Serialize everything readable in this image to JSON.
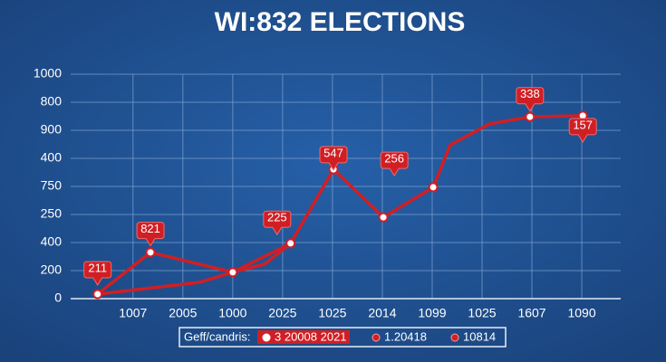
{
  "chart_data": {
    "type": "line",
    "title": "WI:832 ELECTIONS",
    "categories": [
      "1007",
      "2005",
      "1000",
      "2025",
      "1025",
      "2014",
      "1099",
      "1025",
      "1607",
      "1090"
    ],
    "xlim": [
      -1.25,
      9.78
    ],
    "ylim": [
      0,
      8
    ],
    "yticks": [
      {
        "value": 0,
        "label": "0"
      },
      {
        "value": 1,
        "label": "200"
      },
      {
        "value": 2,
        "label": "400"
      },
      {
        "value": 3,
        "label": "250"
      },
      {
        "value": 4,
        "label": "750"
      },
      {
        "value": 5,
        "label": "400"
      },
      {
        "value": 6,
        "label": "900"
      },
      {
        "value": 7,
        "label": "800"
      },
      {
        "value": 8,
        "label": "1000"
      }
    ],
    "grid": true,
    "series": [
      {
        "color": "#d01f24",
        "markers": true,
        "x": [
          -0.71,
          0.35,
          2.0,
          3.16,
          4.02,
          5.02,
          6.02,
          6.36,
          7.15,
          7.96,
          9.02
        ],
        "values": [
          0.16,
          1.65,
          0.94,
          1.97,
          4.61,
          2.9,
          3.97,
          5.48,
          6.23,
          6.48,
          6.52
        ],
        "marked": [
          true,
          true,
          true,
          true,
          true,
          true,
          true,
          false,
          false,
          true,
          true
        ]
      },
      {
        "color": "#d01f24",
        "markers": false,
        "x": [
          -0.71,
          1.33,
          2.0,
          2.64,
          3.16
        ],
        "values": [
          0.16,
          0.58,
          0.94,
          1.23,
          1.97
        ]
      }
    ],
    "annotations": [
      {
        "text": "211",
        "x": -0.71,
        "y": 1.0
      },
      {
        "text": "821",
        "x": 0.35,
        "y": 2.4
      },
      {
        "text": "225",
        "x": 2.89,
        "y": 2.8
      },
      {
        "text": "547",
        "x": 4.02,
        "y": 5.1
      },
      {
        "text": "256",
        "x": 5.24,
        "y": 4.9
      },
      {
        "text": "338",
        "x": 7.96,
        "y": 7.2
      },
      {
        "text": "157",
        "x": 9.02,
        "y": 6.1
      }
    ],
    "legend": {
      "title": "Geff/candris:",
      "items": [
        "3 20008  2021",
        "1.20418",
        "10814"
      ]
    }
  }
}
